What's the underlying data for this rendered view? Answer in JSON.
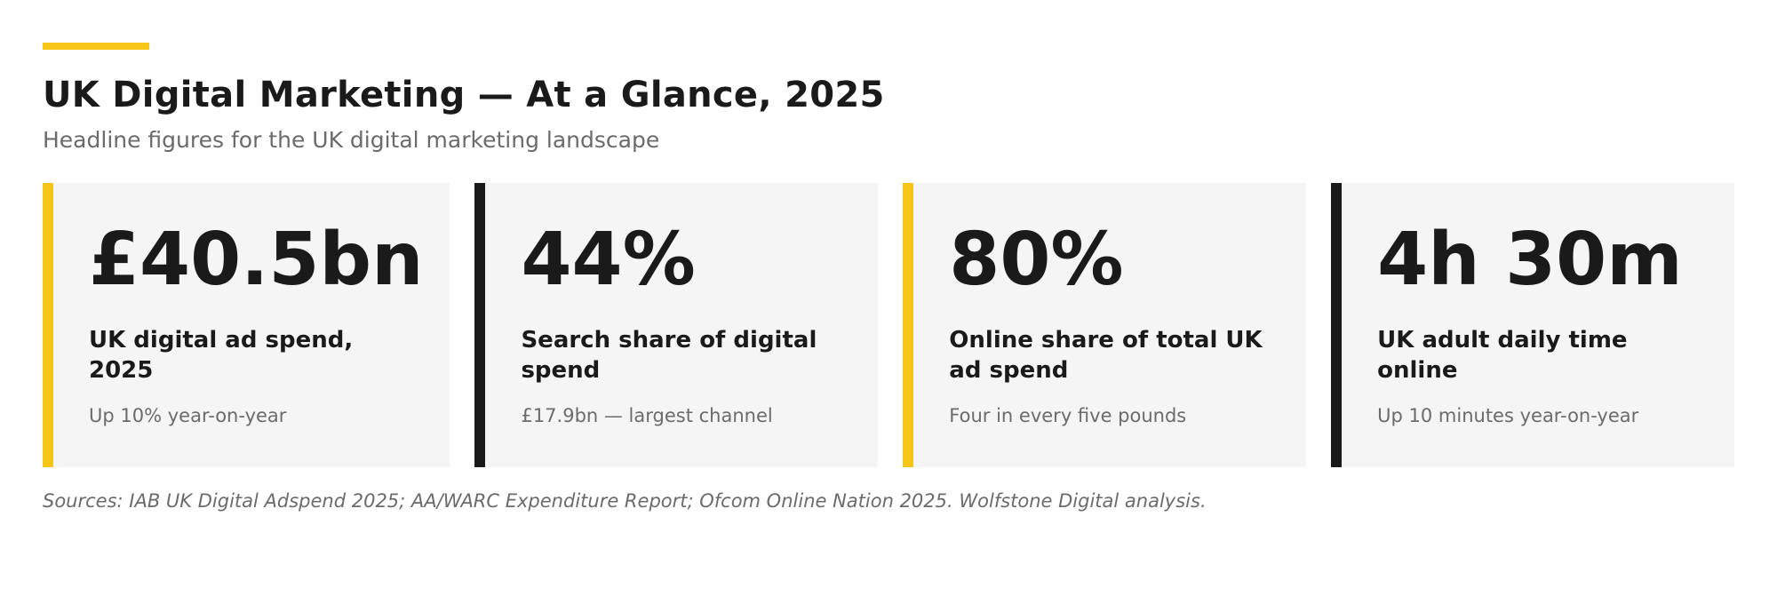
{
  "header": {
    "title": "UK Digital Marketing — At a Glance, 2025",
    "subtitle": "Headline figures for the UK digital marketing landscape"
  },
  "colors": {
    "accent_yellow": "#f5c518",
    "accent_black": "#1a1a1a",
    "card_background": "#f5f5f5"
  },
  "cards": [
    {
      "value": "£40.5bn",
      "label": "UK digital ad spend, 2025",
      "note": "Up 10% year-on-year",
      "accent": "#f5c518"
    },
    {
      "value": "44%",
      "label": "Search share of digital spend",
      "note": "£17.9bn — largest channel",
      "accent": "#1a1a1a"
    },
    {
      "value": "80%",
      "label": "Online share of total UK ad spend",
      "note": "Four in every five pounds",
      "accent": "#f5c518"
    },
    {
      "value": "4h 30m",
      "label": "UK adult daily time online",
      "note": "Up 10 minutes year-on-year",
      "accent": "#1a1a1a"
    }
  ],
  "footer": {
    "sources": "Sources: IAB UK Digital Adspend 2025; AA/WARC Expenditure Report; Ofcom Online Nation 2025. Wolfstone Digital analysis."
  }
}
